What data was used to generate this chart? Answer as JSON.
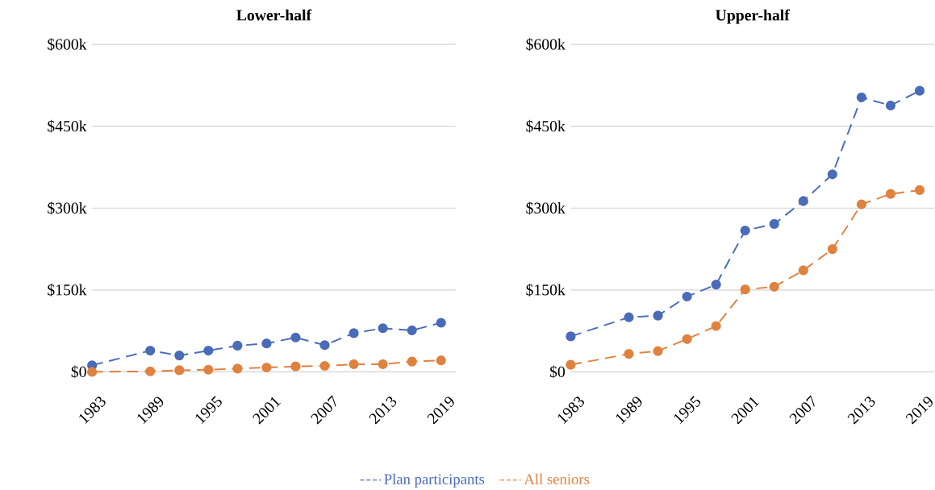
{
  "chart_data": [
    {
      "type": "line",
      "title": "Lower-half",
      "x": [
        1983,
        1989,
        1992,
        1995,
        1998,
        2001,
        2004,
        2007,
        2010,
        2013,
        2016,
        2019
      ],
      "series": [
        {
          "name": "Plan participants",
          "color": "#4a6bb8",
          "values": [
            12,
            39,
            30,
            39,
            48,
            52,
            63,
            49,
            71,
            80,
            76,
            90
          ]
        },
        {
          "name": "All seniors",
          "color": "#e0823f",
          "values": [
            0,
            1,
            3,
            4,
            6,
            8,
            10,
            11,
            14,
            14,
            19,
            21
          ]
        }
      ],
      "xlim": [
        1983,
        2020.5
      ],
      "xticks": [
        1983,
        1989,
        1995,
        2001,
        2007,
        2013,
        2019
      ],
      "ylim": [
        0,
        600
      ],
      "yticks": [
        {
          "value": 0,
          "label": "$0"
        },
        {
          "value": 150,
          "label": "$150k"
        },
        {
          "value": 300,
          "label": "$300k"
        },
        {
          "value": 450,
          "label": "$450k"
        },
        {
          "value": 600,
          "label": "$600k"
        }
      ],
      "grid": "y",
      "legend": "bottom",
      "marker": "circle",
      "line_style": "dashed"
    },
    {
      "type": "line",
      "title": "Upper-half",
      "x": [
        1983,
        1989,
        1992,
        1995,
        1998,
        2001,
        2004,
        2007,
        2010,
        2013,
        2016,
        2019
      ],
      "series": [
        {
          "color": "#4a6bb8",
          "values": [
            65,
            100,
            103,
            138,
            160,
            259,
            271,
            313,
            362,
            503,
            488,
            515
          ]
        },
        {
          "color": "#e0823f",
          "values": [
            13,
            33,
            38,
            60,
            84,
            151,
            156,
            186,
            225,
            307,
            326,
            333
          ]
        }
      ],
      "xlim": [
        1983,
        2020.5
      ],
      "xticks": [
        1983,
        1989,
        1995,
        2001,
        2007,
        2013,
        2019
      ],
      "ylim": [
        0,
        600
      ],
      "yticks": [
        {
          "value": 0,
          "label": "$0"
        },
        {
          "value": 150,
          "label": "$150k"
        },
        {
          "value": 300,
          "label": "$300k"
        },
        {
          "value": 450,
          "label": "$450k"
        },
        {
          "value": 600,
          "label": "$600k"
        }
      ],
      "grid": "y",
      "marker": "circle",
      "line_style": "dashed"
    }
  ]
}
